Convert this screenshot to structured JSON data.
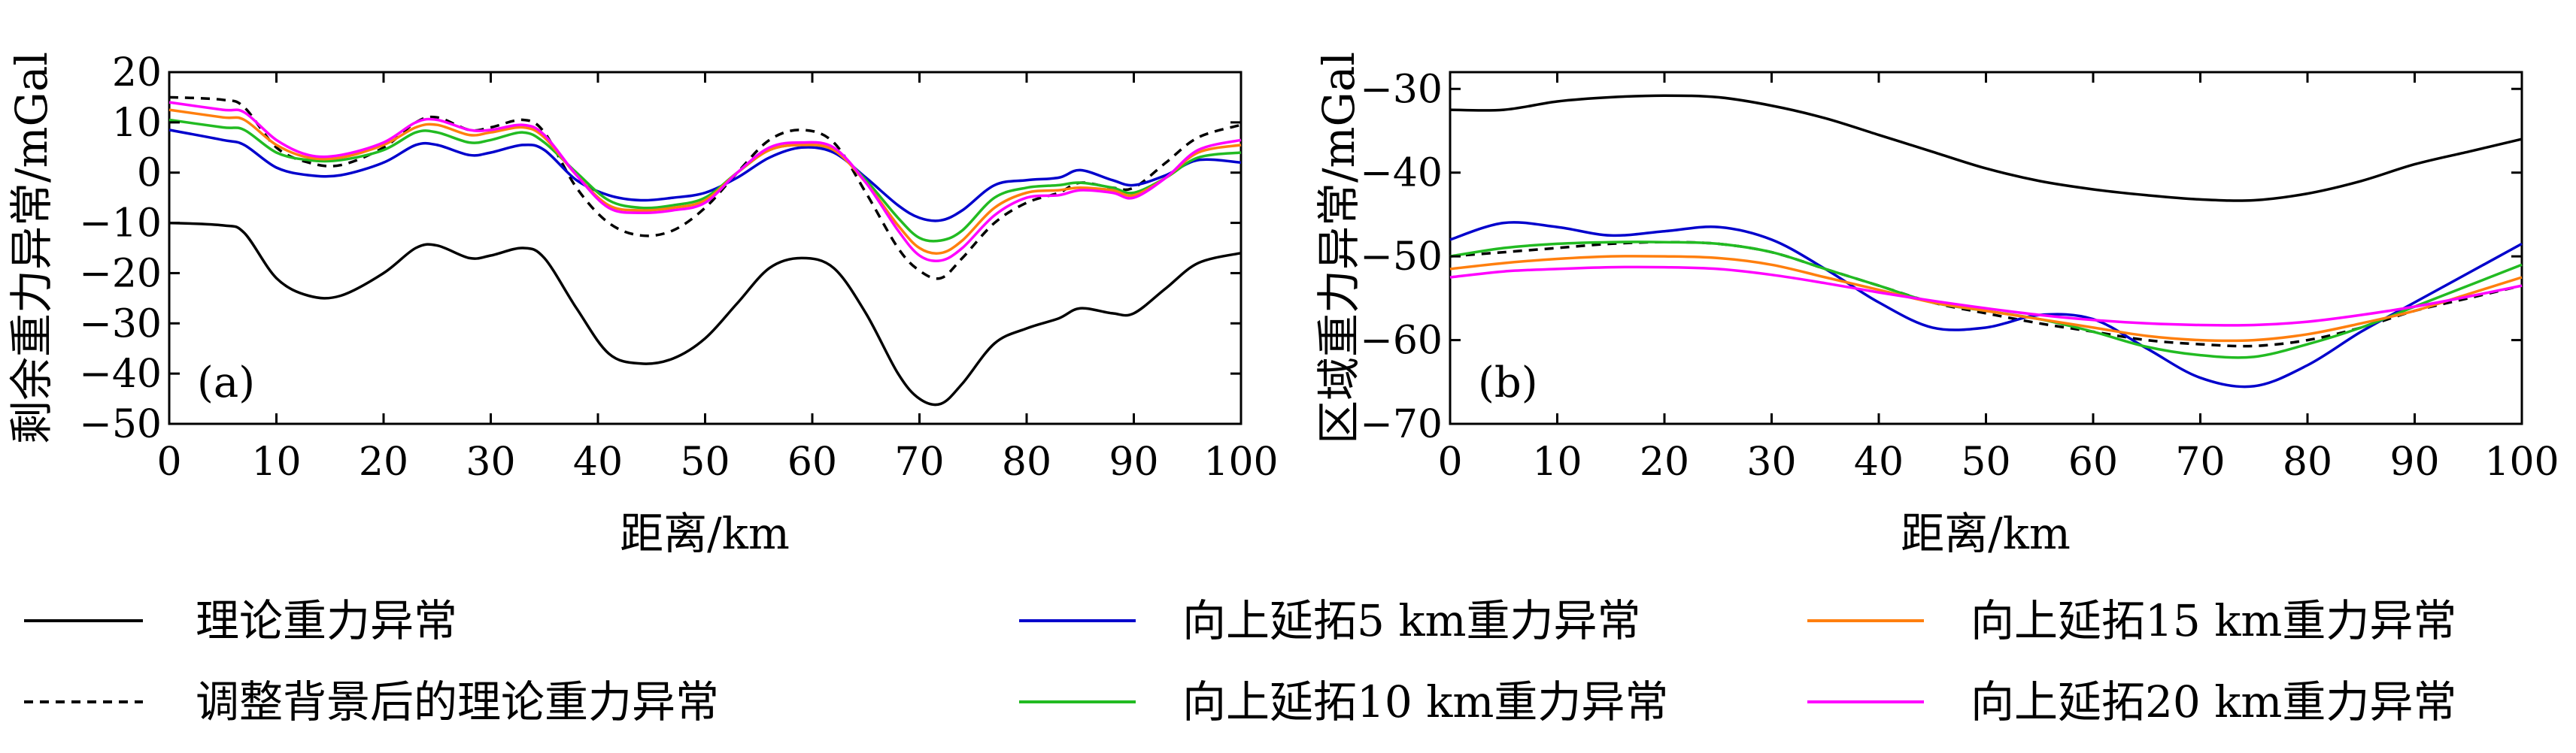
{
  "chart_data": [
    {
      "type": "line",
      "panel_label": "(a)",
      "xlabel": "距离/km",
      "ylabel": "剩余重力异常/mGal",
      "xlim": [
        0,
        100
      ],
      "ylim": [
        -50,
        20
      ],
      "xticks": [
        0,
        10,
        20,
        30,
        40,
        50,
        60,
        70,
        80,
        90,
        100
      ],
      "yticks": [
        20,
        10,
        0,
        -10,
        -20,
        -30,
        -40,
        -50
      ],
      "grid": false,
      "series": [
        {
          "key": "theory",
          "color": "#000000",
          "dashed": false,
          "x": [
            0,
            5,
            7,
            10,
            13,
            16,
            20,
            23,
            25,
            28,
            30,
            33,
            35,
            38,
            41,
            44,
            47,
            50,
            53,
            56,
            59,
            62,
            65,
            68,
            70,
            72,
            74,
            77,
            80,
            83,
            85,
            88,
            90,
            93,
            96,
            100
          ],
          "y": [
            -10,
            -10.5,
            -12,
            -21,
            -24.5,
            -24.5,
            -20,
            -15,
            -14.5,
            -17,
            -16.5,
            -15,
            -17,
            -27,
            -36,
            -38,
            -37,
            -33,
            -26,
            -19,
            -17,
            -19,
            -28,
            -40,
            -45,
            -46,
            -42,
            -34,
            -31,
            -29,
            -27,
            -28,
            -28,
            -23,
            -18,
            -16
          ]
        },
        {
          "key": "adjusted",
          "color": "#000000",
          "dashed": true,
          "x": [
            0,
            5,
            7,
            10,
            13,
            16,
            20,
            23,
            25,
            28,
            30,
            33,
            35,
            38,
            41,
            44,
            47,
            50,
            53,
            56,
            59,
            62,
            65,
            68,
            70,
            72,
            74,
            77,
            80,
            83,
            85,
            88,
            90,
            93,
            96,
            100
          ],
          "y": [
            15,
            14.5,
            13,
            5,
            2,
            1.5,
            5,
            10,
            11,
            8.5,
            9,
            10.5,
            8,
            -3,
            -10,
            -12.5,
            -11.5,
            -7,
            0,
            6.5,
            8.5,
            6,
            -4,
            -15,
            -19.5,
            -21,
            -17,
            -10,
            -6,
            -4,
            -2,
            -3,
            -3,
            2,
            7,
            9.5
          ]
        },
        {
          "key": "up5",
          "color": "#0000cc",
          "dashed": false,
          "x": [
            0,
            5,
            7,
            10,
            13,
            16,
            20,
            23,
            25,
            28,
            30,
            33,
            35,
            38,
            41,
            44,
            47,
            50,
            53,
            56,
            59,
            62,
            65,
            68,
            70,
            72,
            74,
            77,
            80,
            83,
            85,
            88,
            90,
            93,
            96,
            100
          ],
          "y": [
            8.5,
            6.5,
            5.5,
            1,
            -0.5,
            -0.5,
            2,
            5.5,
            5.5,
            3.5,
            4,
            5.5,
            4.5,
            -1.5,
            -4.5,
            -5.5,
            -5,
            -4,
            -1,
            3,
            5,
            4,
            -1,
            -6.5,
            -9,
            -9.5,
            -7.5,
            -2.5,
            -1.5,
            -1,
            0.5,
            -1.5,
            -2.5,
            -0.5,
            2.5,
            2
          ]
        },
        {
          "key": "up10",
          "color": "#22bb22",
          "dashed": false,
          "x": [
            0,
            5,
            7,
            10,
            13,
            16,
            20,
            23,
            25,
            28,
            30,
            33,
            35,
            38,
            41,
            44,
            47,
            50,
            53,
            56,
            59,
            62,
            65,
            68,
            70,
            72,
            74,
            77,
            80,
            83,
            85,
            88,
            90,
            93,
            96,
            100
          ],
          "y": [
            10.5,
            9,
            8.5,
            4,
            2.5,
            2.5,
            4.5,
            8,
            8,
            6,
            6.5,
            8,
            6,
            0,
            -5.5,
            -7,
            -6.5,
            -5,
            0,
            4.5,
            5.5,
            4.5,
            -1.5,
            -9,
            -13,
            -13.5,
            -11.5,
            -5,
            -3,
            -2.5,
            -2,
            -3,
            -4,
            -1,
            3,
            4
          ]
        },
        {
          "key": "up15",
          "color": "#ff7f0e",
          "dashed": false,
          "x": [
            0,
            5,
            7,
            10,
            13,
            16,
            20,
            23,
            25,
            28,
            30,
            33,
            35,
            38,
            41,
            44,
            47,
            50,
            53,
            56,
            59,
            62,
            65,
            68,
            70,
            72,
            74,
            77,
            80,
            83,
            85,
            88,
            90,
            93,
            96,
            100
          ],
          "y": [
            12.5,
            11,
            10.5,
            5.5,
            3,
            3,
            5.5,
            9,
            9.5,
            7.5,
            8,
            9,
            7,
            -0.5,
            -6.5,
            -7.5,
            -7,
            -5.5,
            0,
            4.5,
            5.5,
            4.5,
            -2,
            -10.5,
            -15,
            -16,
            -13.5,
            -7,
            -4,
            -3.5,
            -3,
            -3.5,
            -4.5,
            -1,
            4,
            5.5
          ]
        },
        {
          "key": "up20",
          "color": "#ff00ff",
          "dashed": false,
          "x": [
            0,
            5,
            7,
            10,
            13,
            16,
            20,
            23,
            25,
            28,
            30,
            33,
            35,
            38,
            41,
            44,
            47,
            50,
            53,
            56,
            59,
            62,
            65,
            68,
            70,
            72,
            74,
            77,
            80,
            83,
            85,
            88,
            90,
            93,
            96,
            100
          ],
          "y": [
            14,
            12.5,
            12,
            6.5,
            3.5,
            3.5,
            6,
            10,
            10.5,
            8.5,
            8.5,
            9.5,
            7.5,
            -0.5,
            -7,
            -8,
            -7.5,
            -6,
            0,
            5,
            6,
            5,
            -2,
            -11.5,
            -16.5,
            -17.5,
            -15,
            -8.5,
            -5,
            -4.5,
            -3.5,
            -4,
            -5,
            -1,
            4.5,
            6.5
          ]
        }
      ]
    },
    {
      "type": "line",
      "panel_label": "(b)",
      "xlabel": "距离/km",
      "ylabel": "区域重力异常/mGal",
      "xlim": [
        0,
        100
      ],
      "ylim": [
        -70,
        -28
      ],
      "xticks": [
        0,
        10,
        20,
        30,
        40,
        50,
        60,
        70,
        80,
        90,
        100
      ],
      "yticks": [
        -30,
        -40,
        -50,
        -60,
        -70
      ],
      "grid": false,
      "series": [
        {
          "key": "theory",
          "color": "#000000",
          "dashed": false,
          "x": [
            0,
            5,
            10,
            15,
            20,
            25,
            30,
            35,
            40,
            45,
            50,
            55,
            60,
            65,
            70,
            75,
            80,
            85,
            90,
            95,
            100
          ],
          "y": [
            -32.5,
            -32.5,
            -31.5,
            -31,
            -30.8,
            -31,
            -32,
            -33.5,
            -35.5,
            -37.5,
            -39.5,
            -41,
            -42,
            -42.7,
            -43.2,
            -43.3,
            -42.5,
            -41,
            -39,
            -37.5,
            -36
          ]
        },
        {
          "key": "adjusted",
          "color": "#000000",
          "dashed": true,
          "x": [
            0,
            5,
            10,
            15,
            20,
            25,
            30,
            35,
            40,
            45,
            50,
            55,
            60,
            65,
            70,
            75,
            80,
            85,
            90,
            95,
            100
          ],
          "y": [
            -50,
            -49.5,
            -49,
            -48.5,
            -48.3,
            -48.5,
            -49.5,
            -51.5,
            -53.5,
            -55.5,
            -56.8,
            -58,
            -59,
            -60,
            -60.5,
            -60.7,
            -60,
            -58.5,
            -56.5,
            -55,
            -53.5
          ]
        },
        {
          "key": "up5",
          "color": "#0000cc",
          "dashed": false,
          "x": [
            0,
            5,
            10,
            15,
            20,
            25,
            30,
            35,
            40,
            45,
            50,
            55,
            60,
            65,
            70,
            75,
            80,
            85,
            90,
            95,
            100
          ],
          "y": [
            -48,
            -46,
            -46.5,
            -47.5,
            -47,
            -46.5,
            -48,
            -51.5,
            -55.5,
            -58.5,
            -58.5,
            -57,
            -57.5,
            -61,
            -64.5,
            -65.5,
            -63,
            -59,
            -55.5,
            -52,
            -48.5
          ]
        },
        {
          "key": "up10",
          "color": "#22bb22",
          "dashed": false,
          "x": [
            0,
            5,
            10,
            15,
            20,
            25,
            30,
            35,
            40,
            45,
            50,
            55,
            60,
            65,
            70,
            75,
            80,
            85,
            90,
            95,
            100
          ],
          "y": [
            -50,
            -49,
            -48.5,
            -48.3,
            -48.3,
            -48.5,
            -49.5,
            -51.5,
            -53.5,
            -55.5,
            -56.5,
            -57.5,
            -59,
            -60.8,
            -61.8,
            -62,
            -60.5,
            -58.5,
            -56,
            -53.5,
            -51
          ]
        },
        {
          "key": "up15",
          "color": "#ff7f0e",
          "dashed": false,
          "x": [
            0,
            5,
            10,
            15,
            20,
            25,
            30,
            35,
            40,
            45,
            50,
            55,
            60,
            65,
            70,
            75,
            80,
            85,
            90,
            95,
            100
          ],
          "y": [
            -51.5,
            -50.8,
            -50.3,
            -50,
            -50,
            -50.2,
            -51,
            -52.5,
            -54,
            -55.5,
            -56.5,
            -57.5,
            -58.5,
            -59.5,
            -60,
            -60,
            -59.3,
            -58,
            -56.5,
            -54.5,
            -52.5
          ]
        },
        {
          "key": "up20",
          "color": "#ff00ff",
          "dashed": false,
          "x": [
            0,
            5,
            10,
            15,
            20,
            25,
            30,
            35,
            40,
            45,
            50,
            55,
            60,
            65,
            70,
            75,
            80,
            85,
            90,
            95,
            100
          ],
          "y": [
            -52.5,
            -51.8,
            -51.5,
            -51.3,
            -51.3,
            -51.5,
            -52.2,
            -53.2,
            -54.3,
            -55.3,
            -56.2,
            -57,
            -57.6,
            -58,
            -58.2,
            -58.2,
            -57.8,
            -57,
            -56,
            -54.8,
            -53.5
          ]
        }
      ]
    }
  ],
  "legend": [
    {
      "key": "theory",
      "label": "理论重力异常",
      "color": "#000000",
      "dashed": false
    },
    {
      "key": "adjusted",
      "label": "调整背景后的理论重力异常",
      "color": "#000000",
      "dashed": true
    },
    {
      "key": "up5",
      "label": "向上延拓5 km重力异常",
      "color": "#0000cc",
      "dashed": false
    },
    {
      "key": "up10",
      "label": "向上延拓10 km重力异常",
      "color": "#22bb22",
      "dashed": false
    },
    {
      "key": "up15",
      "label": "向上延拓15 km重力异常",
      "color": "#ff7f0e",
      "dashed": false
    },
    {
      "key": "up20",
      "label": "向上延拓20 km重力异常",
      "color": "#ff00ff",
      "dashed": false
    }
  ]
}
